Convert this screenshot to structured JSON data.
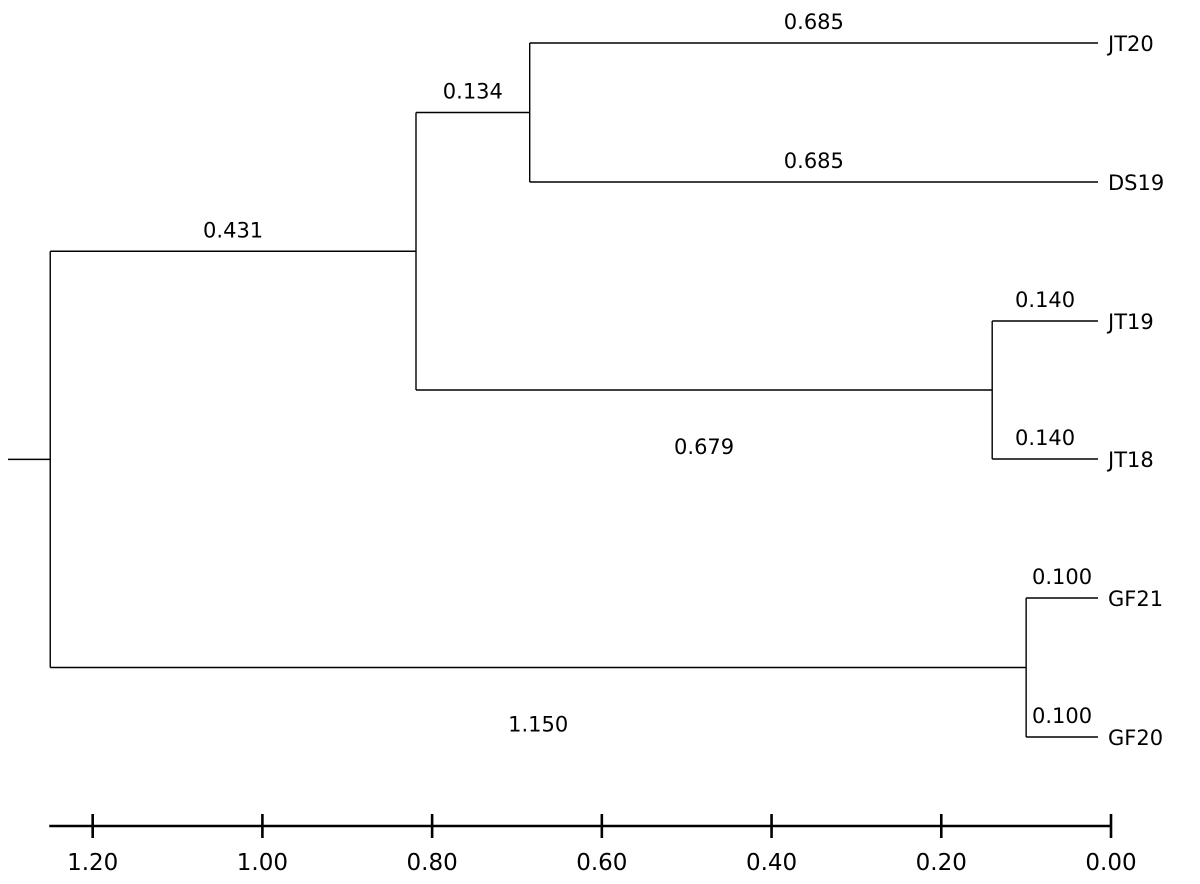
{
  "dendrogram": {
    "leaves": [
      {
        "id": "JT20",
        "label": "JT20"
      },
      {
        "id": "DS19",
        "label": "DS19"
      },
      {
        "id": "JT19",
        "label": "JT19"
      },
      {
        "id": "JT18",
        "label": "JT18"
      },
      {
        "id": "GF21",
        "label": "GF21"
      },
      {
        "id": "GF20",
        "label": "GF20"
      }
    ],
    "nodes": [
      {
        "id": "n_jt20_ds19",
        "height": 0.685,
        "children": [
          "JT20",
          "DS19"
        ]
      },
      {
        "id": "n_jt19_jt18",
        "height": 0.14,
        "children": [
          "JT19",
          "JT18"
        ]
      },
      {
        "id": "n_jt_ds",
        "height": 0.819,
        "children": [
          "n_jt20_ds19",
          "n_jt19_jt18"
        ]
      },
      {
        "id": "n_gf",
        "height": 0.1,
        "children": [
          "GF21",
          "GF20"
        ]
      },
      {
        "id": "root",
        "height": 1.25,
        "children": [
          "n_jt_ds",
          "n_gf"
        ]
      }
    ],
    "branch_labels": [
      {
        "child": "JT20",
        "text": "0.685"
      },
      {
        "child": "DS19",
        "text": "0.685"
      },
      {
        "child": "n_jt20_ds19",
        "text": "0.134"
      },
      {
        "child": "n_jt_ds",
        "text": "0.431"
      },
      {
        "child": "JT19",
        "text": "0.140"
      },
      {
        "child": "JT18",
        "text": "0.140"
      },
      {
        "child": "n_jt19_jt18",
        "text": "0.679"
      },
      {
        "child": "GF21",
        "text": "0.100"
      },
      {
        "child": "GF20",
        "text": "0.100"
      },
      {
        "child": "n_gf",
        "text": "1.150"
      }
    ],
    "axis": {
      "ticks": [
        1.2,
        1.0,
        0.8,
        0.6,
        0.4,
        0.2,
        0.0
      ],
      "tick_labels": [
        "1.20",
        "1.00",
        "0.80",
        "0.60",
        "0.40",
        "0.20",
        "0.00"
      ],
      "range": [
        1.25,
        0.0
      ]
    }
  }
}
